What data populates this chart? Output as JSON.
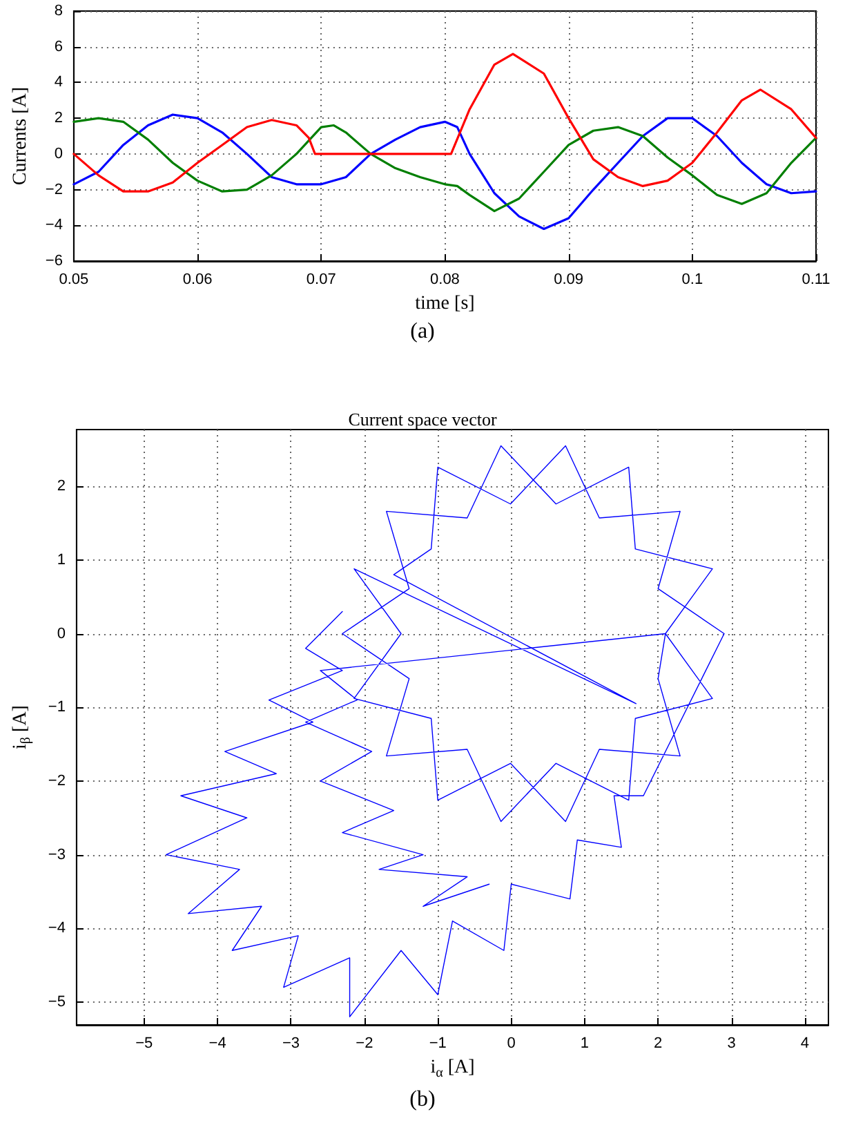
{
  "chart_data": [
    {
      "type": "line",
      "xlabel": "time [s]",
      "ylabel": "Currents [A]",
      "annotations": [
        "(a)"
      ],
      "grid": true,
      "marker": "none",
      "xlim": [
        0.05,
        0.11
      ],
      "xticks": [
        0.05,
        0.06,
        0.07,
        0.08,
        0.09,
        0.1,
        0.11
      ],
      "ylim": [
        -6,
        8
      ],
      "yticks": [
        -6,
        -4,
        -2,
        0,
        2,
        4,
        6,
        8
      ],
      "series": [
        {
          "color": "#0000ff",
          "x": [
            0.05,
            0.052,
            0.054,
            0.056,
            0.058,
            0.06,
            0.062,
            0.064,
            0.066,
            0.068,
            0.07,
            0.072,
            0.074,
            0.076,
            0.078,
            0.08,
            0.081,
            0.082,
            0.084,
            0.086,
            0.088,
            0.09,
            0.092,
            0.094,
            0.096,
            0.098,
            0.1,
            0.102,
            0.104,
            0.106,
            0.108,
            0.11
          ],
          "values": [
            -1.7,
            -1,
            0.5,
            1.6,
            2.2,
            2,
            1.2,
            0,
            -1.3,
            -1.7,
            -1.7,
            -1.3,
            0,
            0.8,
            1.5,
            1.8,
            1.5,
            0,
            -2.2,
            -3.5,
            -4.2,
            -3.6,
            -2,
            -0.5,
            1,
            2,
            2,
            1,
            -0.5,
            -1.7,
            -2.2,
            -2.1
          ]
        },
        {
          "color": "#007f00",
          "x": [
            0.05,
            0.052,
            0.054,
            0.056,
            0.058,
            0.06,
            0.062,
            0.064,
            0.066,
            0.068,
            0.07,
            0.071,
            0.072,
            0.074,
            0.076,
            0.078,
            0.08,
            0.081,
            0.082,
            0.084,
            0.086,
            0.088,
            0.09,
            0.092,
            0.094,
            0.096,
            0.098,
            0.1,
            0.102,
            0.104,
            0.106,
            0.108,
            0.11
          ],
          "values": [
            1.8,
            2,
            1.8,
            0.8,
            -0.5,
            -1.5,
            -2.1,
            -2,
            -1.2,
            0,
            1.5,
            1.6,
            1.2,
            0,
            -0.8,
            -1.3,
            -1.7,
            -1.8,
            -2.3,
            -3.2,
            -2.5,
            -1,
            0.5,
            1.3,
            1.5,
            1,
            -0.2,
            -1.2,
            -2.3,
            -2.8,
            -2.2,
            -0.5,
            0.9
          ]
        },
        {
          "color": "#ff0000",
          "x": [
            0.05,
            0.052,
            0.054,
            0.056,
            0.058,
            0.06,
            0.062,
            0.064,
            0.066,
            0.068,
            0.069,
            0.0695,
            0.0805,
            0.082,
            0.084,
            0.0855,
            0.088,
            0.09,
            0.092,
            0.094,
            0.096,
            0.098,
            0.1,
            0.102,
            0.104,
            0.1055,
            0.108,
            0.11
          ],
          "values": [
            0,
            -1.2,
            -2.1,
            -2.1,
            -1.6,
            -0.5,
            0.5,
            1.5,
            1.9,
            1.6,
            0.9,
            0,
            0,
            2.5,
            5,
            5.6,
            4.5,
            2,
            -0.3,
            -1.3,
            -1.8,
            -1.5,
            -0.5,
            1.2,
            3,
            3.6,
            2.5,
            0.9
          ]
        }
      ]
    },
    {
      "type": "line",
      "title": "Current space vector",
      "xlabel": "i$_{α}$ [A]",
      "ylabel": "i$_{β}$ [A]",
      "annotations": [
        "(b)"
      ],
      "grid": true,
      "marker": "none",
      "xlim": [
        -5.92,
        4.32
      ],
      "xticks": [
        -5,
        -4,
        -3,
        -2,
        -1,
        0,
        1,
        2,
        3,
        4
      ],
      "ylim": [
        -5.31,
        2.77
      ],
      "yticks": [
        -5,
        -4,
        -3,
        -2,
        -1,
        0,
        1,
        2
      ],
      "series": [
        {
          "color": "#0000ff",
          "x": [
            -2.3,
            -2.8,
            -2.3,
            -3.3,
            -2.7,
            -3.9,
            -3.2,
            -4.5,
            -3.6,
            -4.7,
            -3.7,
            -4.4,
            -3.4,
            -3.8,
            -2.9,
            -3.1,
            -2.2,
            -2.2,
            -1.5,
            -1,
            -0.8,
            -0.1,
            0,
            0.8,
            0.9,
            1.5,
            1.4,
            1.8,
            2.9,
            2,
            2.3,
            1.2,
            0.74,
            -0.01,
            -1,
            -1.09,
            -1.6,
            1.7,
            -2.14,
            -1.5,
            -2.14,
            -1.09,
            -1,
            -0.01,
            0.74,
            1.2,
            2.3,
            2,
            2.1,
            2.74,
            1.69,
            1.6,
            0.61,
            -0.14,
            -0.6,
            -1.7,
            -1.39,
            -2.3,
            -1.39,
            -1.7,
            -0.6,
            -0.14,
            0.61,
            1.6,
            1.69,
            2.74,
            2.1,
            -2.6,
            -2.1,
            -2.8,
            -1.9,
            -2.6,
            -1.6,
            -2.3,
            -1.2,
            -1.8,
            -0.6,
            -1.2,
            -0.3
          ],
          "values": [
            0.3,
            -0.2,
            -0.5,
            -0.9,
            -1.2,
            -1.6,
            -1.9,
            -2.2,
            -2.5,
            -3,
            -3.2,
            -3.8,
            -3.7,
            -4.3,
            -4.1,
            -4.8,
            -4.4,
            -5.2,
            -4.3,
            -4.9,
            -3.9,
            -4.3,
            -3.4,
            -3.6,
            -2.8,
            -2.9,
            -2.2,
            -2.2,
            0,
            0.61,
            1.66,
            1.57,
            2.55,
            1.76,
            2.26,
            1.15,
            0.8,
            -0.95,
            0.88,
            0,
            -0.88,
            -1.15,
            -2.26,
            -1.76,
            -2.55,
            -1.57,
            -1.66,
            -0.61,
            0,
            0.88,
            1.15,
            2.26,
            1.76,
            2.55,
            1.57,
            1.66,
            0.61,
            0,
            -0.61,
            -1.66,
            -1.57,
            -2.55,
            -1.76,
            -2.26,
            -1.15,
            -0.88,
            0,
            -0.5,
            -0.9,
            -1.2,
            -1.6,
            -2,
            -2.4,
            -2.7,
            -3,
            -3.2,
            -3.3,
            -3.7,
            -3.4
          ]
        }
      ]
    }
  ]
}
